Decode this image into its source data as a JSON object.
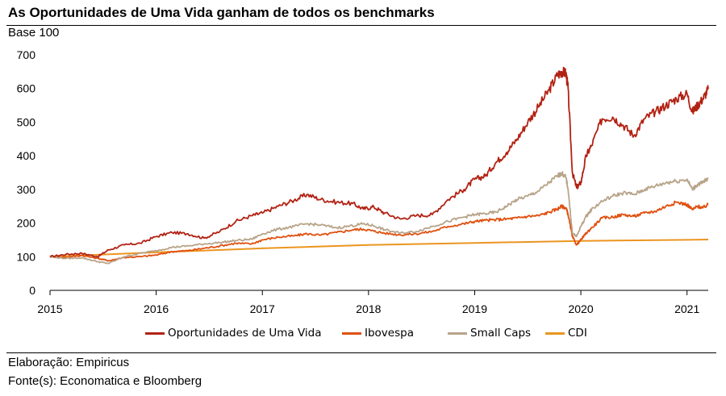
{
  "header": {
    "title": "As Oportunidades de Uma Vida ganham de todos os benchmarks",
    "base_label": "Base 100"
  },
  "footer": {
    "elaboracao": "Elaboração: Empiricus",
    "fonte": "Fonte(s): Economatica e Bloomberg"
  },
  "chart_data": {
    "type": "line",
    "title": "As Oportunidades de Uma Vida ganham de todos os benchmarks",
    "ylabel": "Base 100",
    "xlabel": "",
    "ylim": [
      0,
      700
    ],
    "xlim": [
      2015,
      2021.2
    ],
    "y_ticks": [
      "0",
      "100",
      "200",
      "300",
      "400",
      "500",
      "600",
      "700"
    ],
    "x_ticks": [
      "2015",
      "2016",
      "2017",
      "2018",
      "2019",
      "2020",
      "2021"
    ],
    "grid": false,
    "legend_position": "bottom",
    "series": [
      {
        "name": "Oportunidades de Uma Vida",
        "color": "#b22213",
        "x": [
          2015.0,
          2015.15,
          2015.3,
          2015.45,
          2015.55,
          2015.7,
          2015.85,
          2016.0,
          2016.15,
          2016.3,
          2016.45,
          2016.6,
          2016.75,
          2016.9,
          2017.0,
          2017.15,
          2017.3,
          2017.42,
          2017.55,
          2017.7,
          2017.85,
          2017.95,
          2018.05,
          2018.15,
          2018.3,
          2018.45,
          2018.6,
          2018.75,
          2018.9,
          2019.0,
          2019.1,
          2019.2,
          2019.3,
          2019.4,
          2019.5,
          2019.6,
          2019.7,
          2019.78,
          2019.82,
          2019.86,
          2019.88,
          2019.92,
          2019.96,
          2020.0,
          2020.05,
          2020.1,
          2020.2,
          2020.3,
          2020.4,
          2020.5,
          2020.6,
          2020.7,
          2020.8,
          2020.9,
          2021.0,
          2021.05,
          2021.1,
          2021.15,
          2021.2
        ],
        "values": [
          100,
          107,
          110,
          100,
          120,
          135,
          140,
          160,
          172,
          168,
          155,
          175,
          205,
          222,
          230,
          250,
          268,
          285,
          270,
          262,
          258,
          242,
          248,
          230,
          212,
          222,
          225,
          270,
          300,
          330,
          340,
          380,
          410,
          450,
          500,
          545,
          595,
          640,
          650,
          645,
          600,
          350,
          305,
          320,
          400,
          430,
          510,
          515,
          490,
          460,
          510,
          530,
          550,
          570,
          585,
          530,
          550,
          570,
          598
        ]
      },
      {
        "name": "Ibovespa",
        "color": "#e0500f",
        "x": [
          2015.0,
          2015.15,
          2015.3,
          2015.45,
          2015.55,
          2015.7,
          2015.85,
          2016.0,
          2016.15,
          2016.3,
          2016.45,
          2016.6,
          2016.75,
          2016.9,
          2017.0,
          2017.15,
          2017.3,
          2017.42,
          2017.55,
          2017.7,
          2017.85,
          2017.95,
          2018.05,
          2018.15,
          2018.3,
          2018.45,
          2018.6,
          2018.75,
          2018.9,
          2019.0,
          2019.1,
          2019.2,
          2019.3,
          2019.4,
          2019.5,
          2019.6,
          2019.7,
          2019.78,
          2019.82,
          2019.86,
          2019.88,
          2019.92,
          2019.96,
          2020.0,
          2020.05,
          2020.1,
          2020.2,
          2020.3,
          2020.4,
          2020.5,
          2020.6,
          2020.7,
          2020.8,
          2020.9,
          2021.0,
          2021.05,
          2021.1,
          2021.15,
          2021.2
        ],
        "values": [
          100,
          98,
          104,
          95,
          88,
          98,
          100,
          105,
          115,
          118,
          125,
          132,
          140,
          138,
          150,
          158,
          162,
          168,
          164,
          172,
          180,
          182,
          176,
          170,
          165,
          168,
          175,
          190,
          198,
          205,
          208,
          210,
          212,
          215,
          220,
          222,
          232,
          242,
          250,
          245,
          225,
          160,
          135,
          150,
          170,
          185,
          215,
          218,
          225,
          220,
          230,
          235,
          250,
          262,
          255,
          240,
          250,
          245,
          255
        ]
      },
      {
        "name": "Small Caps",
        "color": "#b8a48a",
        "x": [
          2015.0,
          2015.15,
          2015.3,
          2015.45,
          2015.55,
          2015.7,
          2015.85,
          2016.0,
          2016.15,
          2016.3,
          2016.45,
          2016.6,
          2016.75,
          2016.9,
          2017.0,
          2017.15,
          2017.3,
          2017.42,
          2017.55,
          2017.7,
          2017.85,
          2017.95,
          2018.05,
          2018.15,
          2018.3,
          2018.45,
          2018.6,
          2018.75,
          2018.9,
          2019.0,
          2019.1,
          2019.2,
          2019.3,
          2019.4,
          2019.5,
          2019.6,
          2019.7,
          2019.78,
          2019.82,
          2019.86,
          2019.88,
          2019.92,
          2019.96,
          2020.0,
          2020.05,
          2020.1,
          2020.2,
          2020.3,
          2020.4,
          2020.5,
          2020.6,
          2020.7,
          2020.8,
          2020.9,
          2021.0,
          2021.05,
          2021.1,
          2021.15,
          2021.2
        ],
        "values": [
          100,
          95,
          97,
          85,
          80,
          100,
          110,
          118,
          128,
          132,
          138,
          142,
          148,
          152,
          168,
          182,
          190,
          198,
          194,
          186,
          192,
          198,
          192,
          180,
          170,
          175,
          190,
          205,
          218,
          225,
          228,
          232,
          250,
          270,
          280,
          295,
          320,
          340,
          348,
          335,
          300,
          170,
          160,
          190,
          220,
          240,
          265,
          280,
          290,
          285,
          300,
          310,
          320,
          325,
          330,
          300,
          315,
          320,
          335
        ]
      },
      {
        "name": "CDI",
        "color": "#eb9520",
        "x": [
          2015.0,
          2016.0,
          2017.0,
          2018.0,
          2019.0,
          2020.0,
          2021.0,
          2021.2
        ],
        "values": [
          100,
          113,
          125,
          135,
          141,
          147,
          150,
          151
        ]
      }
    ]
  }
}
